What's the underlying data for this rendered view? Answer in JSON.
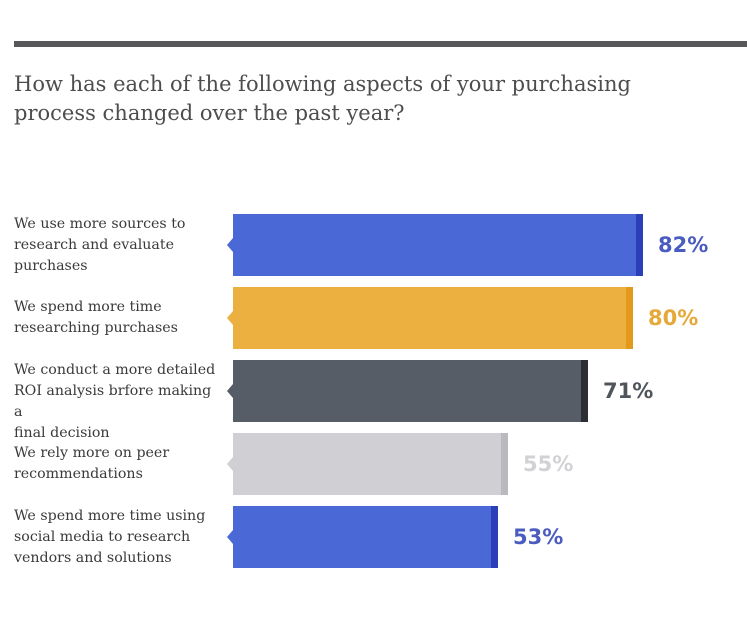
{
  "header": {
    "question": "How has each of the following aspects of your purchasing\nprocess changed over the past year?"
  },
  "chart_data": {
    "type": "bar",
    "orientation": "horizontal",
    "title": "How has each of the following aspects of your purchasing process changed over the past year?",
    "categories": [
      "We use more sources to\nresearch and evaluate\npurchases",
      "We spend more time\nresearching purchases",
      "We conduct a more detailed\nROI analysis brfore making a\nfinal decision",
      "We rely more on peer\nrecommendations",
      "We spend more time using\nsocial media to research\nvendors and solutions"
    ],
    "values": [
      82,
      80,
      71,
      55,
      53
    ],
    "value_labels": [
      "82%",
      "80%",
      "71%",
      "55%",
      "53%"
    ],
    "unit": "%",
    "xlim": [
      0,
      100
    ],
    "grid": false,
    "legend": "none",
    "colors": [
      "#4a69d6",
      "#ecb041",
      "#575d66",
      "#d0d0d4",
      "#4a69d6"
    ],
    "edge_colors": [
      "#2a3fb8",
      "#e29a1c",
      "#2b2e33",
      "#b9b9be",
      "#2a3fb8"
    ],
    "label_colors": [
      "#4a5cbf",
      "#e5a93a",
      "#50555c",
      "#d2d2d6",
      "#4a5cbf"
    ]
  }
}
